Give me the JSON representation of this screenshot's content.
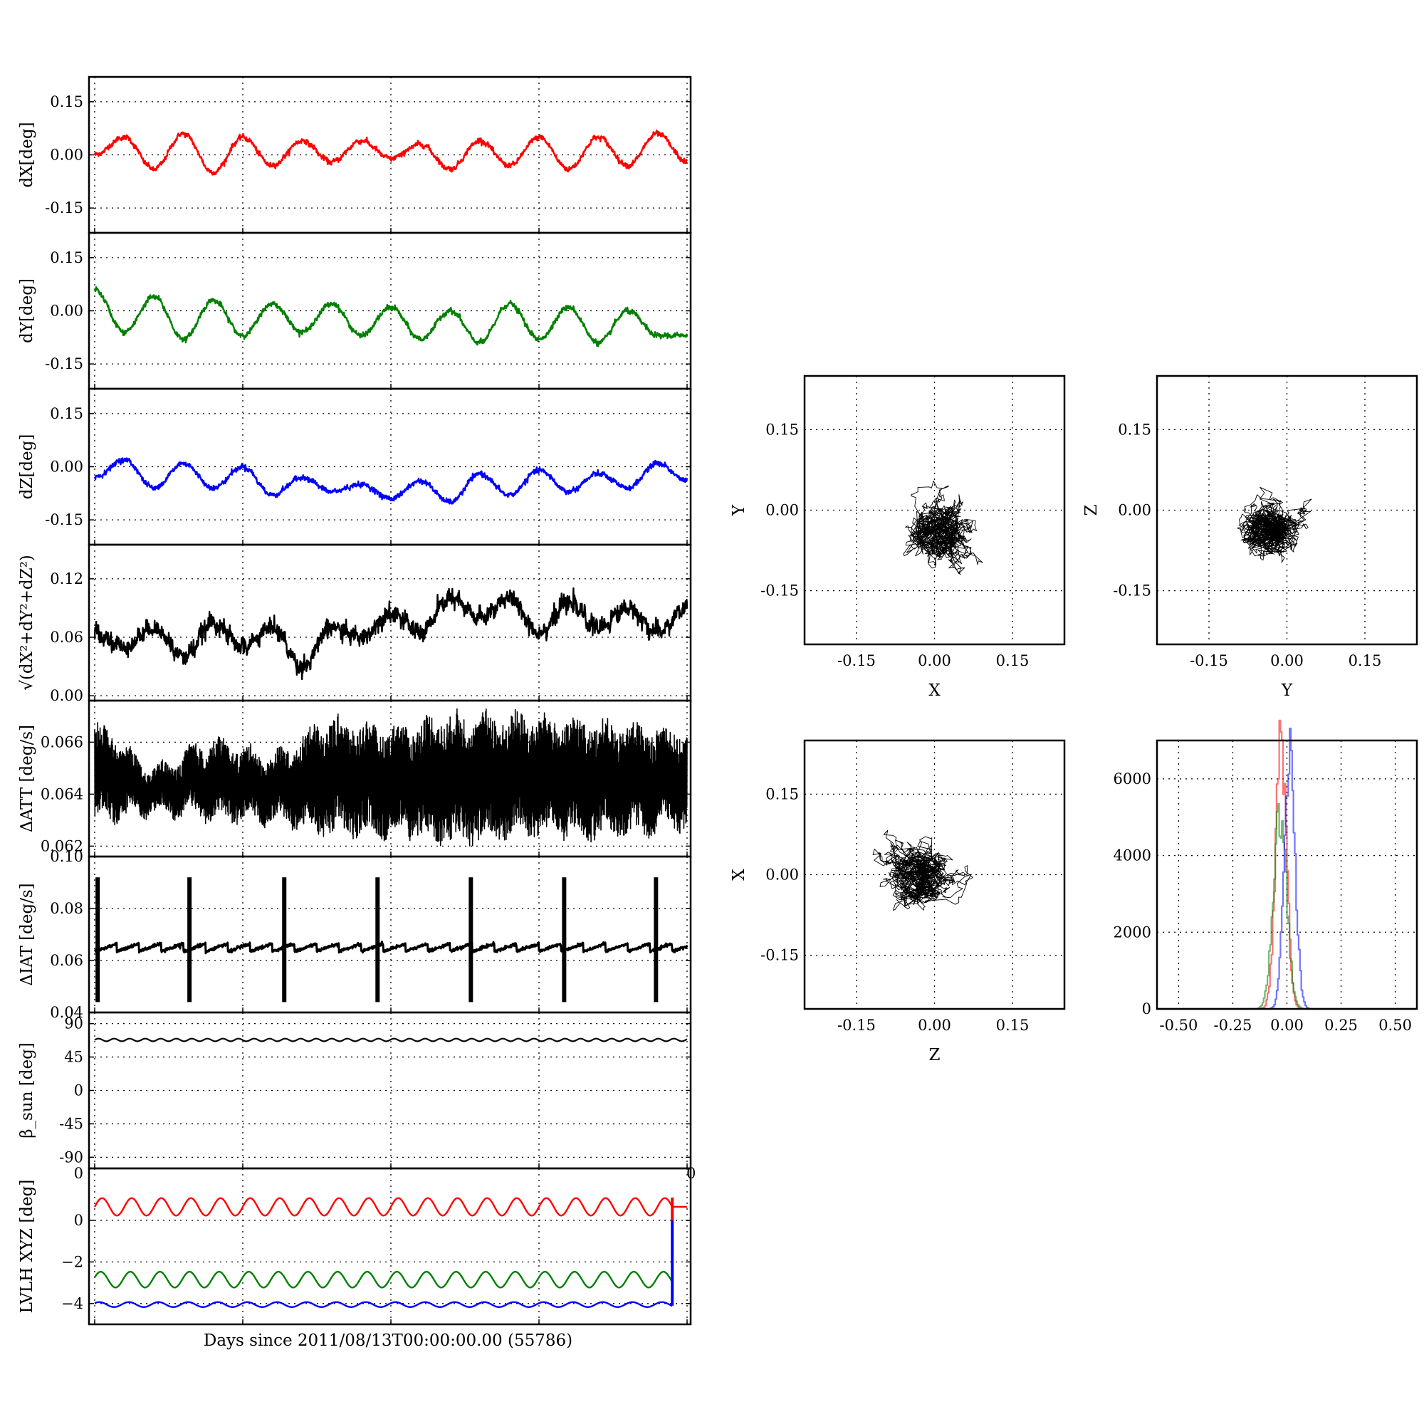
{
  "figure": {
    "xlabel_bottom": "Days since 2011/08/13T00:00:00.00 (55786)"
  },
  "chart_data": [
    {
      "type": "line",
      "ylabel": "dX[deg]",
      "ylim": [
        -0.22,
        0.22
      ],
      "yticks": [
        "0.15",
        "0.00",
        "-0.15"
      ],
      "ytick_values": [
        0.15,
        0.0,
        -0.15
      ],
      "grid": true,
      "color": "#ff0000",
      "series": [
        {
          "x": [
            0,
            2,
            4,
            6,
            8,
            10,
            12,
            14,
            16,
            18,
            20,
            22,
            24,
            26,
            28,
            30,
            32,
            34,
            36,
            38,
            40
          ],
          "values": [
            0.0,
            0.05,
            -0.04,
            0.06,
            -0.05,
            0.05,
            -0.03,
            0.04,
            -0.02,
            0.04,
            -0.01,
            0.03,
            -0.04,
            0.04,
            -0.03,
            0.05,
            -0.04,
            0.05,
            -0.03,
            0.06,
            -0.02
          ]
        }
      ]
    },
    {
      "type": "line",
      "ylabel": "dY[deg]",
      "ylim": [
        -0.22,
        0.22
      ],
      "yticks": [
        "0.15",
        "0.00",
        "-0.15"
      ],
      "ytick_values": [
        0.15,
        0.0,
        -0.15
      ],
      "grid": true,
      "color": "#008000",
      "series": [
        {
          "x": [
            0,
            2,
            4,
            6,
            8,
            10,
            12,
            14,
            16,
            18,
            20,
            22,
            24,
            26,
            28,
            30,
            32,
            34,
            36,
            38,
            40
          ],
          "values": [
            0.06,
            -0.06,
            0.04,
            -0.08,
            0.03,
            -0.07,
            0.02,
            -0.06,
            0.02,
            -0.07,
            0.01,
            -0.08,
            0.0,
            -0.09,
            0.02,
            -0.08,
            0.01,
            -0.09,
            0.0,
            -0.07,
            -0.07
          ]
        }
      ]
    },
    {
      "type": "line",
      "ylabel": "dZ[deg]",
      "ylim": [
        -0.22,
        0.22
      ],
      "yticks": [
        "0.15",
        "0.00",
        "-0.15"
      ],
      "ytick_values": [
        0.15,
        0.0,
        -0.15
      ],
      "grid": true,
      "color": "#0000ff",
      "series": [
        {
          "x": [
            0,
            2,
            4,
            6,
            8,
            10,
            12,
            14,
            16,
            18,
            20,
            22,
            24,
            26,
            28,
            30,
            32,
            34,
            36,
            38,
            40
          ],
          "values": [
            -0.03,
            0.02,
            -0.06,
            0.01,
            -0.06,
            0.0,
            -0.08,
            -0.03,
            -0.07,
            -0.05,
            -0.09,
            -0.04,
            -0.1,
            -0.02,
            -0.08,
            -0.01,
            -0.07,
            -0.02,
            -0.06,
            0.01,
            -0.04
          ]
        }
      ]
    },
    {
      "type": "line",
      "ylabel": "√(dX²+dY²+dZ²)",
      "ylim": [
        -0.005,
        0.155
      ],
      "yticks": [
        "0.12",
        "0.06",
        "0.00"
      ],
      "ytick_values": [
        0.12,
        0.06,
        0.0
      ],
      "grid": true,
      "color": "#000000",
      "series": [
        {
          "x": [
            0,
            2,
            4,
            6,
            8,
            10,
            12,
            14,
            16,
            18,
            20,
            22,
            24,
            26,
            28,
            30,
            32,
            34,
            36,
            38,
            40
          ],
          "values": [
            0.065,
            0.05,
            0.07,
            0.04,
            0.075,
            0.05,
            0.07,
            0.03,
            0.07,
            0.06,
            0.085,
            0.065,
            0.1,
            0.08,
            0.1,
            0.065,
            0.095,
            0.07,
            0.09,
            0.065,
            0.09
          ]
        }
      ]
    },
    {
      "type": "line",
      "ylabel": "ΔATT [deg/s]",
      "ylim": [
        0.0616,
        0.0676
      ],
      "yticks": [
        "0.066",
        "0.064",
        "0.062"
      ],
      "ytick_values": [
        0.066,
        0.064,
        0.062
      ],
      "grid": true,
      "color": "#000000",
      "series": [
        {
          "x": [
            0,
            4,
            8,
            12,
            16,
            20,
            24,
            28,
            32,
            36,
            40
          ],
          "upper": [
            0.0666,
            0.065,
            0.066,
            0.0655,
            0.0668,
            0.0665,
            0.067,
            0.067,
            0.0668,
            0.0666,
            0.0664
          ],
          "lower": [
            0.063,
            0.0633,
            0.0631,
            0.063,
            0.0625,
            0.0625,
            0.0622,
            0.0624,
            0.0624,
            0.0625,
            0.0628
          ]
        }
      ]
    },
    {
      "type": "line",
      "ylabel": "ΔIAT [deg/s]",
      "ylim": [
        0.04,
        0.1
      ],
      "yticks": [
        "0.10",
        "0.08",
        "0.06",
        "0.04"
      ],
      "ytick_values": [
        0.1,
        0.08,
        0.06,
        0.04
      ],
      "grid": true,
      "color": "#000000",
      "series": [
        {
          "baseline": 0.065,
          "spike_days": [
            0.2,
            6.4,
            12.8,
            19.1,
            25.4,
            31.7,
            37.9
          ],
          "spike_max": 0.092,
          "spike_min": 0.044
        }
      ]
    },
    {
      "type": "line",
      "ylabel": "β_sun [deg]",
      "ylim": [
        -105,
        105
      ],
      "yticks": [
        "90",
        "45",
        "0",
        "-45",
        "-90"
      ],
      "ytick_values": [
        90,
        45,
        0,
        -45,
        -90
      ],
      "grid": true,
      "color": "#000000",
      "series": [
        {
          "x": [
            0,
            40
          ],
          "values": [
            68,
            68
          ]
        }
      ]
    },
    {
      "type": "line",
      "ylabel": "LVLH XYZ [deg]",
      "ylim": [
        -5,
        2.5
      ],
      "yticks": [
        "0",
        "−2",
        "−4"
      ],
      "ytick_values": [
        0,
        -2,
        -4
      ],
      "grid": true,
      "series": [
        {
          "color": "#ff0000",
          "mean": 0.65,
          "amp": 0.42,
          "cycles": 20
        },
        {
          "color": "#008000",
          "mean": -2.85,
          "amp": 0.38,
          "cycles": 20
        },
        {
          "color": "#0000ff",
          "mean": -4.05,
          "amp": 0.12,
          "cycles": 20
        }
      ],
      "stray_tick_label_left": "0",
      "stray_tick_label_right": "0"
    },
    {
      "type": "scatter",
      "xlabel": "X",
      "ylabel": "Y",
      "xlim": [
        -0.25,
        0.25
      ],
      "ylim": [
        -0.25,
        0.25
      ],
      "ticks": [
        "-0.15",
        "0.00",
        "0.15"
      ],
      "tick_values": [
        -0.15,
        0.0,
        0.15
      ],
      "grid": true,
      "center": [
        0.01,
        -0.04
      ],
      "spread": [
        0.045,
        0.05
      ]
    },
    {
      "type": "scatter",
      "xlabel": "Y",
      "ylabel": "Z",
      "xlim": [
        -0.25,
        0.25
      ],
      "ylim": [
        -0.25,
        0.25
      ],
      "ticks": [
        "-0.15",
        "0.00",
        "0.15"
      ],
      "tick_values": [
        -0.15,
        0.0,
        0.15
      ],
      "grid": true,
      "center": [
        -0.03,
        -0.04
      ],
      "spread": [
        0.055,
        0.045
      ]
    },
    {
      "type": "scatter",
      "xlabel": "Z",
      "ylabel": "X",
      "xlim": [
        -0.25,
        0.25
      ],
      "ylim": [
        -0.25,
        0.25
      ],
      "ticks": [
        "-0.15",
        "0.00",
        "0.15"
      ],
      "tick_values": [
        -0.15,
        0.0,
        0.15
      ],
      "grid": true,
      "center": [
        -0.03,
        0.0
      ],
      "spread": [
        0.055,
        0.045
      ]
    },
    {
      "type": "bar",
      "subtype": "histogram",
      "xlim": [
        -0.6,
        0.6
      ],
      "ylim": [
        0,
        7000
      ],
      "xticks": [
        "-0.50",
        "-0.25",
        "0.00",
        "0.25",
        "0.50"
      ],
      "xtick_values": [
        -0.5,
        -0.25,
        0.0,
        0.25,
        0.5
      ],
      "yticks": [
        "6000",
        "4000",
        "2000",
        "0"
      ],
      "ytick_values": [
        6000,
        4000,
        2000,
        0
      ],
      "grid": true,
      "series": [
        {
          "color": "#ff0000",
          "center": -0.03,
          "sigma": 0.025,
          "peak": 6800
        },
        {
          "color": "#008000",
          "center": -0.035,
          "sigma": 0.03,
          "peak": 5200
        },
        {
          "color": "#0000ff",
          "center": 0.01,
          "sigma": 0.025,
          "peak": 6500
        }
      ]
    }
  ]
}
